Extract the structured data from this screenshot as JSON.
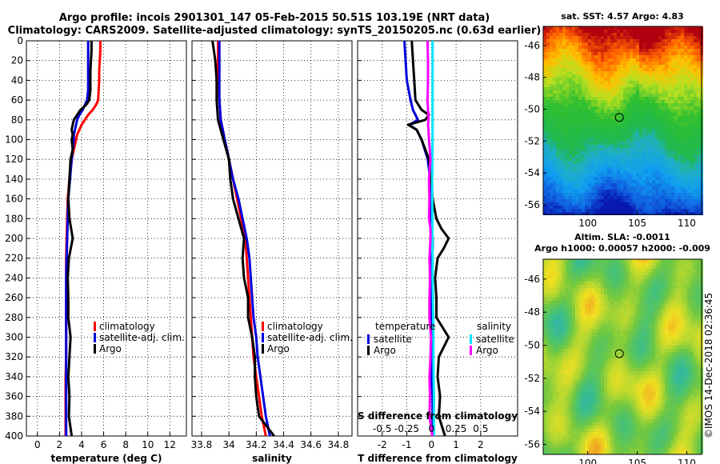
{
  "figure": {
    "title_line1": "Argo profile: incois 2901301_147 05-Feb-2015 50.51S 103.19E (NRT data)",
    "title_line2": "Climatology: CARS2009. Satellite-adjusted climatology: synTS_20150205.nc (0.63d earlier)",
    "watermark": "©IMOS 14-Dec-2018 02:36:45"
  },
  "colors": {
    "climatology": "#ff0000",
    "satellite": "#0000dd",
    "argo": "#000000",
    "sal_satellite": "#00e5ff",
    "sal_argo": "#ff00ff"
  },
  "chart_data": [
    {
      "type": "line",
      "id": "temperature",
      "xlabel": "temperature (deg C)",
      "xlim": [
        -1,
        13.5
      ],
      "xticks": [
        "0",
        "2",
        "4",
        "6",
        "8",
        "10",
        "12"
      ],
      "xtick_values": [
        0,
        2,
        4,
        6,
        8,
        10,
        12
      ],
      "ylim": [
        400,
        0
      ],
      "yticks": [
        0,
        20,
        40,
        60,
        80,
        100,
        120,
        140,
        160,
        180,
        200,
        220,
        240,
        260,
        280,
        300,
        320,
        340,
        360,
        380,
        400
      ],
      "depth": [
        0,
        10,
        20,
        30,
        40,
        50,
        60,
        65,
        70,
        75,
        80,
        85,
        90,
        95,
        100,
        110,
        120,
        140,
        160,
        180,
        200,
        220,
        240,
        260,
        280,
        300,
        320,
        340,
        360,
        380,
        400
      ],
      "series": [
        {
          "name": "climatology",
          "color_key": "climatology",
          "values": [
            5.7,
            5.7,
            5.65,
            5.6,
            5.6,
            5.55,
            5.5,
            5.3,
            5.0,
            4.6,
            4.3,
            4.0,
            3.8,
            3.6,
            3.5,
            3.3,
            3.1,
            2.9,
            2.75,
            2.7,
            2.65,
            2.6,
            2.6,
            2.6,
            2.6,
            2.6,
            2.6,
            2.55,
            2.55,
            2.55,
            2.55
          ]
        },
        {
          "name": "satellite-adj. clim.",
          "color_key": "satellite",
          "values": [
            4.6,
            4.6,
            4.6,
            4.6,
            4.6,
            4.6,
            4.5,
            4.3,
            4.1,
            3.8,
            3.6,
            3.5,
            3.4,
            3.3,
            3.3,
            3.2,
            3.1,
            2.95,
            2.8,
            2.75,
            2.7,
            2.65,
            2.6,
            2.6,
            2.6,
            2.6,
            2.6,
            2.6,
            2.6,
            2.6,
            2.6
          ]
        },
        {
          "name": "Argo",
          "color_key": "argo",
          "values": [
            4.9,
            4.9,
            4.85,
            4.8,
            4.8,
            4.8,
            4.7,
            4.4,
            3.9,
            3.6,
            3.3,
            3.2,
            3.1,
            3.2,
            3.1,
            3.2,
            3.0,
            2.9,
            2.8,
            2.9,
            3.2,
            2.85,
            2.75,
            2.8,
            2.8,
            3.0,
            2.9,
            2.8,
            2.9,
            2.85,
            3.1
          ]
        }
      ],
      "legend": {
        "position": "bottom-right",
        "entries": [
          "climatology",
          "satellite-adj. clim.",
          "Argo"
        ]
      }
    },
    {
      "type": "line",
      "id": "salinity",
      "xlabel": "salinity",
      "xlim": [
        33.73,
        34.9
      ],
      "xticks": [
        "33.8",
        "34",
        "34.2",
        "34.4",
        "34.6",
        "34.8"
      ],
      "xtick_values": [
        33.8,
        34.0,
        34.2,
        34.4,
        34.6,
        34.8
      ],
      "ylim": [
        400,
        0
      ],
      "depth": [
        0,
        10,
        20,
        40,
        60,
        80,
        100,
        120,
        140,
        160,
        180,
        200,
        220,
        240,
        260,
        280,
        300,
        320,
        340,
        360,
        380,
        400
      ],
      "series": [
        {
          "name": "climatology",
          "color_key": "climatology",
          "values": [
            33.92,
            33.92,
            33.92,
            33.92,
            33.93,
            33.94,
            33.97,
            34.0,
            34.03,
            34.06,
            34.09,
            34.12,
            34.13,
            34.14,
            34.15,
            34.16,
            34.17,
            34.18,
            34.2,
            34.22,
            34.24,
            34.27
          ]
        },
        {
          "name": "satellite-adj. clim.",
          "color_key": "satellite",
          "values": [
            33.93,
            33.93,
            33.93,
            33.93,
            33.93,
            33.94,
            33.97,
            34.0,
            34.03,
            34.07,
            34.1,
            34.13,
            34.15,
            34.16,
            34.17,
            34.18,
            34.2,
            34.21,
            34.23,
            34.25,
            34.27,
            34.3
          ]
        },
        {
          "name": "Argo",
          "color_key": "argo",
          "values": [
            33.88,
            33.89,
            33.9,
            33.91,
            33.91,
            33.92,
            33.96,
            34.0,
            34.01,
            34.03,
            34.07,
            34.11,
            34.1,
            34.11,
            34.14,
            34.14,
            34.17,
            34.19,
            34.19,
            34.2,
            34.22,
            34.33
          ]
        }
      ],
      "legend": {
        "position": "bottom-right",
        "entries": [
          "climatology",
          "satellite-adj. clim.",
          "Argo"
        ]
      }
    },
    {
      "type": "line",
      "id": "difference",
      "xlabel": "T difference from climatology",
      "top_xlabel": "S difference from climatology",
      "xlim": [
        -3,
        3.5
      ],
      "xticks": [
        "-2",
        "-1",
        "0",
        "1",
        "2"
      ],
      "xtick_values": [
        -2,
        -1,
        0,
        1,
        2
      ],
      "s_ticks": [
        "-0.5",
        "-0.25",
        "0",
        "0.25",
        "0.5"
      ],
      "s_tick_values": [
        -0.5,
        -0.25,
        0,
        0.25,
        0.5
      ],
      "s_to_t_scale": 4,
      "ylim": [
        400,
        0
      ],
      "depth": [
        0,
        20,
        40,
        60,
        70,
        75,
        80,
        85,
        90,
        100,
        120,
        140,
        160,
        180,
        190,
        200,
        210,
        220,
        240,
        260,
        280,
        300,
        320,
        340,
        360,
        380,
        400
      ],
      "series": [
        {
          "name": "temperature satellite",
          "color_key": "satellite",
          "variable": "T",
          "values": [
            -1.1,
            -1.05,
            -1.0,
            -0.85,
            -0.75,
            -0.65,
            -0.55,
            -0.9,
            -0.6,
            -0.4,
            -0.15,
            -0.05,
            -0.05,
            0.0,
            0.0,
            0.05,
            0.05,
            0.0,
            0.0,
            0.0,
            0.0,
            0.0,
            0.05,
            0.0,
            0.05,
            0.05,
            0.05
          ]
        },
        {
          "name": "temperature Argo",
          "color_key": "argo",
          "variable": "T",
          "values": [
            -0.8,
            -0.75,
            -0.7,
            -0.65,
            -0.4,
            -0.1,
            -0.25,
            -0.95,
            -0.6,
            -0.4,
            -0.1,
            0.0,
            0.05,
            0.2,
            0.4,
            0.7,
            0.5,
            0.25,
            0.15,
            0.2,
            0.2,
            0.7,
            0.3,
            0.25,
            0.35,
            0.3,
            0.55
          ]
        },
        {
          "name": "salinity satellite",
          "color_key": "sal_satellite",
          "variable": "S",
          "values": [
            0.012,
            0.012,
            0.012,
            0.012,
            0.012,
            0.012,
            0.012,
            0.012,
            0.012,
            0.012,
            0.01,
            0.008,
            0.008,
            0.01,
            0.01,
            0.01,
            0.01,
            0.012,
            0.012,
            0.015,
            0.018,
            0.02,
            0.02,
            0.022,
            0.025,
            0.025,
            0.025
          ]
        },
        {
          "name": "salinity Argo",
          "color_key": "sal_argo",
          "variable": "S",
          "values": [
            -0.04,
            -0.035,
            -0.035,
            -0.04,
            -0.035,
            -0.03,
            -0.03,
            -0.035,
            -0.03,
            -0.025,
            -0.01,
            -0.025,
            -0.02,
            -0.025,
            -0.01,
            -0.01,
            -0.015,
            -0.02,
            -0.015,
            -0.02,
            -0.02,
            -0.005,
            -0.01,
            -0.02,
            -0.015,
            -0.02,
            0.01
          ]
        }
      ],
      "legend": {
        "temperature_title": "temperature",
        "salinity_title": "salinity",
        "temperature_entries": [
          "satellite",
          "Argo"
        ],
        "salinity_entries": [
          "satellite",
          "Argo"
        ]
      }
    },
    {
      "type": "heatmap",
      "id": "sst-map",
      "title": "sat. SST: 4.57 Argo: 4.83",
      "xticks": [
        "100",
        "105",
        "110"
      ],
      "xtick_values": [
        100,
        105,
        110
      ],
      "xlim": [
        95.5,
        111.5
      ],
      "ylim": [
        -56.6,
        -44.8
      ],
      "yticks": [
        "-46",
        "-48",
        "-50",
        "-52",
        "-54",
        "-56"
      ],
      "ytick_values": [
        -46,
        -48,
        -50,
        -52,
        -54,
        -56
      ],
      "marker": {
        "lon": 103.19,
        "lat": -50.51
      }
    },
    {
      "type": "heatmap",
      "id": "sla-map",
      "title_line1": "Altim. SLA: -0.0011",
      "title_line2": "Argo h1000: 0.00057 h2000: -0.009",
      "xticks": [
        "100",
        "105",
        "110"
      ],
      "xtick_values": [
        100,
        105,
        110
      ],
      "xlim": [
        95.5,
        111.5
      ],
      "ylim": [
        -56.6,
        -44.8
      ],
      "yticks": [
        "-46",
        "-48",
        "-50",
        "-52",
        "-54",
        "-56"
      ],
      "ytick_values": [
        -46,
        -48,
        -50,
        -52,
        -54,
        -56
      ],
      "marker": {
        "lon": 103.19,
        "lat": -50.51
      }
    }
  ]
}
